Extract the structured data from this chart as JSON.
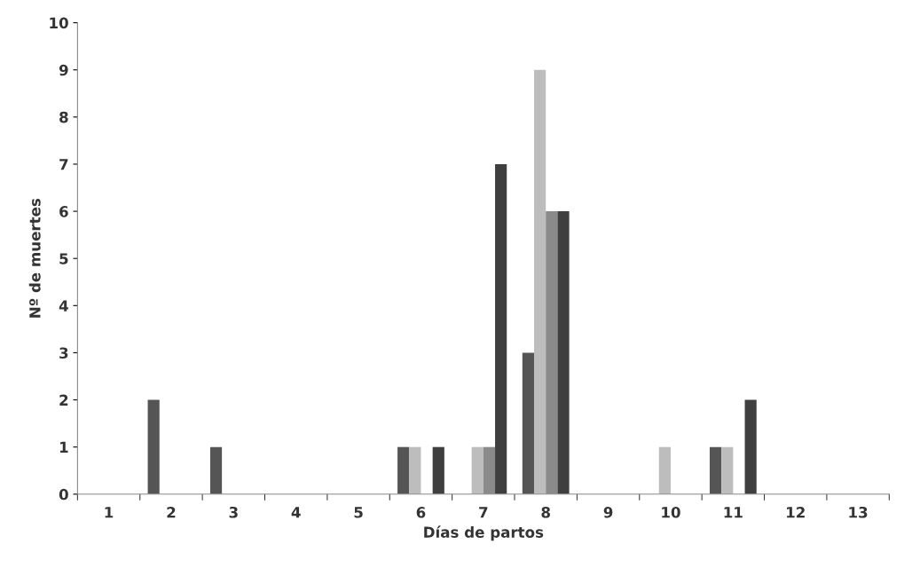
{
  "chart_data": {
    "type": "bar",
    "xlabel": "Días de partos",
    "ylabel": "Nº de muertes",
    "categories": [
      "1",
      "2",
      "3",
      "4",
      "5",
      "6",
      "7",
      "8",
      "9",
      "10",
      "11",
      "12",
      "13"
    ],
    "series": [
      {
        "color": "#555555",
        "values": [
          0,
          2,
          1,
          0,
          0,
          1,
          0,
          3,
          0,
          0,
          1,
          0,
          0
        ]
      },
      {
        "color": "#bdbdbd",
        "values": [
          0,
          0,
          0,
          0,
          0,
          1,
          1,
          9,
          0,
          1,
          1,
          0,
          0
        ]
      },
      {
        "color": "#8a8a8a",
        "values": [
          0,
          0,
          0,
          0,
          0,
          0,
          1,
          6,
          0,
          0,
          0,
          0,
          0
        ]
      },
      {
        "color": "#3f3f3f",
        "values": [
          0,
          0,
          0,
          0,
          0,
          1,
          7,
          6,
          0,
          0,
          2,
          0,
          0
        ]
      }
    ],
    "ylim": [
      0,
      10
    ],
    "yticks": [
      0,
      1,
      2,
      3,
      4,
      5,
      6,
      7,
      8,
      9,
      10
    ],
    "grid": false,
    "legend": false
  }
}
